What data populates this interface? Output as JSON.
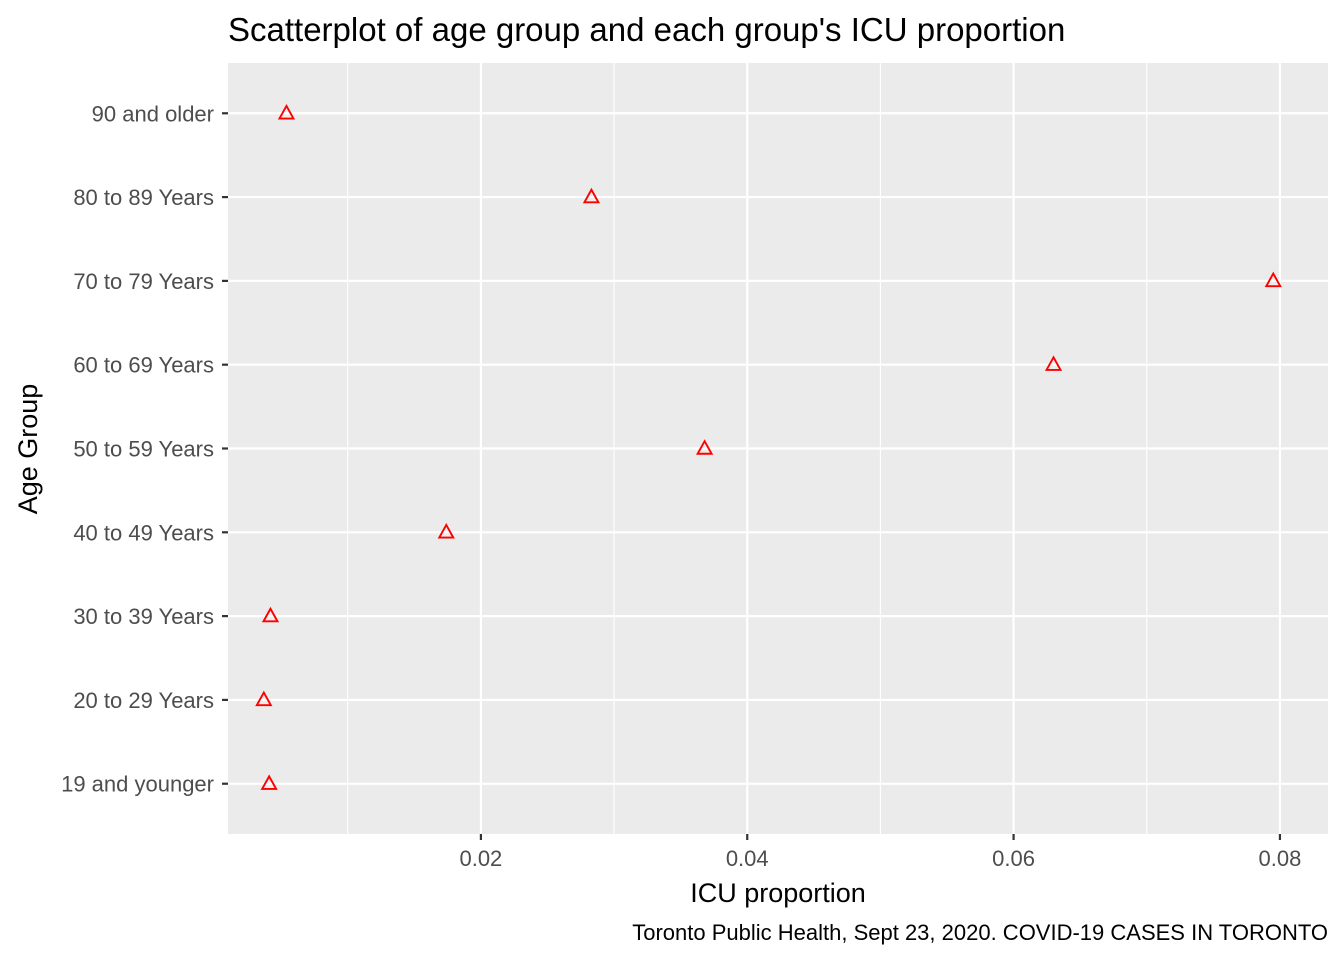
{
  "chart_data": {
    "type": "scatter",
    "title": "Scatterplot of age group and each group's ICU proportion",
    "xlabel": "ICU proportion",
    "ylabel": "Age Group",
    "caption": "Toronto Public Health, Sept 23, 2020. COVID-19 CASES IN TORONTO",
    "categories": [
      "19 and younger",
      "20 to 29 Years",
      "30 to 39 Years",
      "40 to 49 Years",
      "50 to 59 Years",
      "60 to 69 Years",
      "70 to 79 Years",
      "80 to 89 Years",
      "90 and older"
    ],
    "x_ticks": [
      0.02,
      0.04,
      0.06,
      0.08
    ],
    "x_tick_labels": [
      "0.02",
      "0.04",
      "0.06",
      "0.08"
    ],
    "xlim": [
      0.00101,
      0.08361
    ],
    "grid": true,
    "marker": "open-triangle",
    "marker_color": "#ff0000",
    "panel_background": "#ebebeb",
    "points": [
      {
        "category": "19 and younger",
        "x": 0.0041
      },
      {
        "category": "20 to 29 Years",
        "x": 0.0037
      },
      {
        "category": "30 to 39 Years",
        "x": 0.0042
      },
      {
        "category": "40 to 49 Years",
        "x": 0.0174
      },
      {
        "category": "50 to 59 Years",
        "x": 0.0368
      },
      {
        "category": "60 to 69 Years",
        "x": 0.063
      },
      {
        "category": "70 to 79 Years",
        "x": 0.0795
      },
      {
        "category": "80 to 89 Years",
        "x": 0.0283
      },
      {
        "category": "90 and older",
        "x": 0.0054
      }
    ]
  }
}
